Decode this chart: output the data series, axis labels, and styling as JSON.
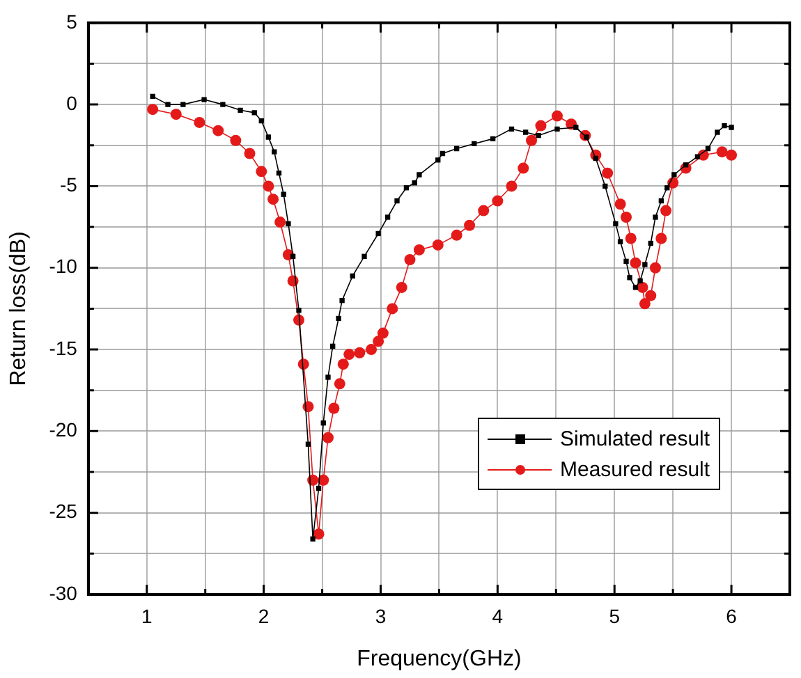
{
  "chart_data": {
    "type": "line",
    "xlabel": "Frequency(GHz)",
    "ylabel": "Return loss(dB)",
    "xlim": [
      0.5,
      6.5
    ],
    "xticks": [
      {
        "value": 0.5,
        "label": null
      },
      1,
      {
        "value": 1.5,
        "label": null
      },
      2,
      {
        "value": 2.5,
        "label": null
      },
      3,
      {
        "value": 3.5,
        "label": null
      },
      4,
      {
        "value": 4.5,
        "label": null
      },
      5,
      {
        "value": 5.5,
        "label": null
      },
      6,
      {
        "value": 6.5,
        "label": null
      }
    ],
    "ylim": [
      -30,
      5
    ],
    "yticks": [
      -30,
      {
        "value": -27.5,
        "label": null
      },
      -25,
      {
        "value": -22.5,
        "label": null
      },
      -20,
      {
        "value": -17.5,
        "label": null
      },
      -15,
      {
        "value": -12.5,
        "label": null
      },
      -10,
      {
        "value": -7.5,
        "label": null
      },
      -5,
      {
        "value": -2.5,
        "label": null
      },
      0,
      {
        "value": 2.5,
        "label": null
      },
      5
    ],
    "grid": true,
    "legend": "bottom right",
    "line_style": "solid",
    "series": [
      {
        "name": "Simulated result",
        "color": "#000000",
        "marker": "square",
        "x": [
          1.05,
          1.18,
          1.31,
          1.49,
          1.65,
          1.8,
          1.92,
          1.98,
          2.04,
          2.09,
          2.13,
          2.17,
          2.21,
          2.25,
          2.3,
          2.38,
          2.42,
          2.47,
          2.51,
          2.55,
          2.59,
          2.64,
          2.67,
          2.76,
          2.86,
          2.98,
          3.06,
          3.14,
          3.22,
          3.29,
          3.33,
          3.49,
          3.53,
          3.65,
          3.8,
          3.96,
          4.12,
          4.24,
          4.35,
          4.51,
          4.67,
          4.76,
          4.84,
          4.92,
          5.01,
          5.05,
          5.1,
          5.13,
          5.18,
          5.22,
          5.26,
          5.31,
          5.35,
          5.4,
          5.45,
          5.51,
          5.61,
          5.71,
          5.8,
          5.88,
          5.94,
          6.0
        ],
        "values": [
          0.5,
          0,
          0,
          0.3,
          0,
          -0.35,
          -0.5,
          -1.0,
          -2.0,
          -2.9,
          -4.2,
          -5.5,
          -7.3,
          -9.3,
          -12.6,
          -20.8,
          -26.6,
          -23.5,
          -19.5,
          -16.7,
          -14.8,
          -13.1,
          -12,
          -10.5,
          -9.3,
          -7.9,
          -6.9,
          -5.9,
          -5.1,
          -4.8,
          -4.3,
          -3.4,
          -3.0,
          -2.7,
          -2.4,
          -2.1,
          -1.5,
          -1.7,
          -1.9,
          -1.5,
          -1.4,
          -2.0,
          -3.3,
          -5.0,
          -7.3,
          -8.4,
          -9.6,
          -10.6,
          -11.2,
          -10.8,
          -9.8,
          -8.5,
          -6.9,
          -5.9,
          -5.1,
          -4.3,
          -3.7,
          -3.2,
          -2.7,
          -1.7,
          -1.3,
          -1.4
        ]
      },
      {
        "name": "Measured result",
        "color": "#e41a1a",
        "marker": "circle",
        "x": [
          1.05,
          1.25,
          1.45,
          1.61,
          1.76,
          1.88,
          1.98,
          2.04,
          2.08,
          2.14,
          2.21,
          2.25,
          2.3,
          2.34,
          2.38,
          2.42,
          2.47,
          2.51,
          2.55,
          2.6,
          2.65,
          2.68,
          2.73,
          2.82,
          2.92,
          2.98,
          3.02,
          3.1,
          3.18,
          3.25,
          3.33,
          3.49,
          3.65,
          3.76,
          3.88,
          4.0,
          4.12,
          4.22,
          4.29,
          4.37,
          4.51,
          4.63,
          4.75,
          4.84,
          4.94,
          5.05,
          5.1,
          5.14,
          5.18,
          5.24,
          5.26,
          5.31,
          5.35,
          5.4,
          5.44,
          5.5,
          5.61,
          5.76,
          5.92,
          6.0
        ],
        "values": [
          -0.3,
          -0.6,
          -1.1,
          -1.6,
          -2.2,
          -3.0,
          -4.1,
          -5.0,
          -5.8,
          -7.2,
          -9.2,
          -10.8,
          -13.2,
          -15.9,
          -18.5,
          -23.0,
          -26.3,
          -23.0,
          -20.4,
          -18.6,
          -17.1,
          -15.9,
          -15.3,
          -15.2,
          -15.0,
          -14.5,
          -14.0,
          -12.5,
          -11.2,
          -9.5,
          -8.9,
          -8.6,
          -8.0,
          -7.4,
          -6.5,
          -5.9,
          -5.0,
          -3.9,
          -2.2,
          -1.3,
          -0.7,
          -1.2,
          -1.9,
          -3.1,
          -4.2,
          -6.1,
          -6.9,
          -8.2,
          -9.7,
          -11.2,
          -12.2,
          -11.7,
          -10.0,
          -8.2,
          -6.5,
          -4.8,
          -3.9,
          -3.1,
          -2.9,
          -3.1
        ]
      }
    ]
  }
}
